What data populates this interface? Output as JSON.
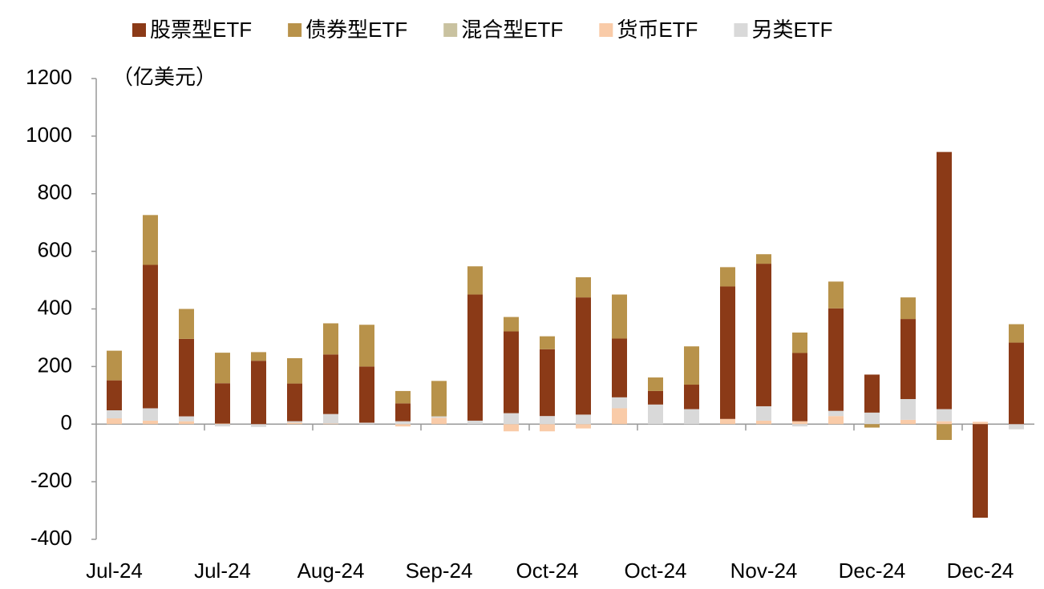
{
  "chart_data": {
    "type": "bar",
    "stacked": true,
    "annotation": "（亿美元）",
    "categories": [
      "Jul-24",
      null,
      null,
      "Jul-24",
      null,
      null,
      "Aug-24",
      null,
      null,
      "Sep-24",
      null,
      null,
      "Oct-24",
      null,
      null,
      "Oct-24",
      null,
      null,
      "Nov-24",
      null,
      null,
      "Dec-24",
      null,
      null,
      "Dec-24",
      null
    ],
    "series": [
      {
        "name": "股票型ETF",
        "color": "#8b3a17",
        "values": [
          104,
          498,
          269,
          140,
          220,
          131,
          207,
          195,
          62,
          0,
          438,
          284,
          232,
          407,
          204,
          47,
          85,
          460,
          495,
          237,
          356,
          132,
          278,
          893,
          -325,
          283
        ]
      },
      {
        "name": "债券型ETF",
        "color": "#b8924a",
        "values": [
          103,
          173,
          104,
          106,
          30,
          88,
          108,
          145,
          43,
          123,
          98,
          50,
          45,
          70,
          153,
          47,
          133,
          67,
          33,
          71,
          93,
          -12,
          75,
          -55,
          0,
          64
        ]
      },
      {
        "name": "混合型ETF",
        "color": "#c9c2a0",
        "values": [
          0,
          0,
          0,
          0,
          0,
          0,
          0,
          0,
          0,
          0,
          0,
          0,
          0,
          0,
          0,
          0,
          0,
          0,
          0,
          0,
          0,
          0,
          0,
          0,
          0,
          0
        ]
      },
      {
        "name": "货币ETF",
        "color": "#f9cba8",
        "values": [
          20,
          12,
          10,
          2,
          0,
          5,
          2,
          0,
          -8,
          22,
          0,
          -25,
          -25,
          -15,
          55,
          0,
          0,
          18,
          12,
          10,
          28,
          0,
          15,
          10,
          8,
          0
        ]
      },
      {
        "name": "另类ETF",
        "color": "#d9d9d9",
        "values": [
          28,
          43,
          17,
          -8,
          -10,
          5,
          33,
          5,
          10,
          5,
          12,
          38,
          28,
          33,
          38,
          68,
          52,
          0,
          50,
          -8,
          18,
          40,
          72,
          42,
          0,
          -18
        ]
      }
    ],
    "ylim": [
      -400,
      1200
    ],
    "yticks": [
      -400,
      -200,
      0,
      200,
      400,
      600,
      800,
      1000,
      1200
    ]
  }
}
